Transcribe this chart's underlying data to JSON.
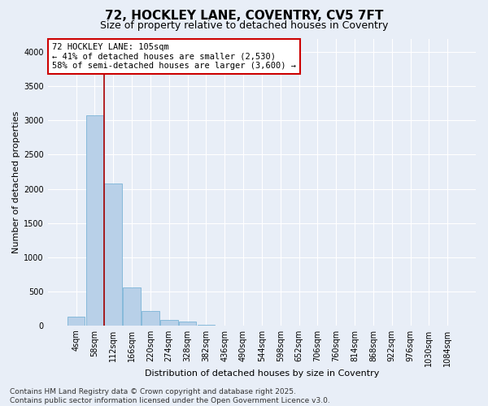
{
  "title_line1": "72, HOCKLEY LANE, COVENTRY, CV5 7FT",
  "title_line2": "Size of property relative to detached houses in Coventry",
  "xlabel": "Distribution of detached houses by size in Coventry",
  "ylabel": "Number of detached properties",
  "categories": [
    "4sqm",
    "58sqm",
    "112sqm",
    "166sqm",
    "220sqm",
    "274sqm",
    "328sqm",
    "382sqm",
    "436sqm",
    "490sqm",
    "544sqm",
    "598sqm",
    "652sqm",
    "706sqm",
    "760sqm",
    "814sqm",
    "868sqm",
    "922sqm",
    "976sqm",
    "1030sqm",
    "1084sqm"
  ],
  "values": [
    130,
    3080,
    2080,
    555,
    215,
    80,
    55,
    5,
    0,
    0,
    0,
    0,
    0,
    0,
    0,
    0,
    0,
    0,
    0,
    0,
    0
  ],
  "bar_color": "#b8d0e8",
  "bar_edge_color": "#6aabd2",
  "vline_color": "#aa0000",
  "annotation_text": "72 HOCKLEY LANE: 105sqm\n← 41% of detached houses are smaller (2,530)\n58% of semi-detached houses are larger (3,600) →",
  "annotation_box_color": "#ffffff",
  "annotation_box_edge_color": "#cc0000",
  "ylim": [
    0,
    4200
  ],
  "yticks": [
    0,
    500,
    1000,
    1500,
    2000,
    2500,
    3000,
    3500,
    4000
  ],
  "background_color": "#e8eef7",
  "grid_color": "#ffffff",
  "footer_text": "Contains HM Land Registry data © Crown copyright and database right 2025.\nContains public sector information licensed under the Open Government Licence v3.0.",
  "title_fontsize": 11,
  "subtitle_fontsize": 9,
  "axis_label_fontsize": 8,
  "tick_fontsize": 7,
  "annotation_fontsize": 7.5,
  "footer_fontsize": 6.5
}
